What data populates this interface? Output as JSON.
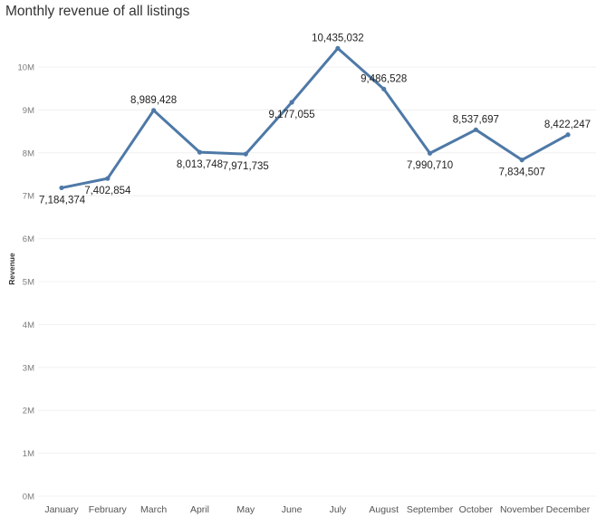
{
  "title": "Monthly revenue of all listings",
  "colors": {
    "line": "#4e79a7",
    "grid": "#f0f0f0",
    "background": "#ffffff"
  },
  "chart_data": {
    "type": "line",
    "title": "Monthly revenue of all listings",
    "xlabel": "",
    "ylabel": "Revenue",
    "categories": [
      "January",
      "February",
      "March",
      "April",
      "May",
      "June",
      "July",
      "August",
      "September",
      "October",
      "November",
      "December"
    ],
    "values": [
      7184374,
      7402854,
      8989428,
      8013748,
      7971735,
      9177055,
      10435032,
      9486528,
      7990710,
      8537697,
      7834507,
      8422247
    ],
    "data_labels": [
      "7,184,374",
      "7,402,854",
      "8,989,428",
      "8,013,748",
      "7,971,735",
      "9,177,055",
      "10,435,032",
      "9,486,528",
      "7,990,710",
      "8,537,697",
      "7,834,507",
      "8,422,247"
    ],
    "label_positions": [
      "below",
      "below",
      "above",
      "below",
      "below",
      "below",
      "above",
      "above",
      "below",
      "above",
      "below",
      "above"
    ],
    "ylim": [
      0,
      11000000
    ],
    "yticks": [
      0,
      1000000,
      2000000,
      3000000,
      4000000,
      5000000,
      6000000,
      7000000,
      8000000,
      9000000,
      10000000
    ],
    "ytick_labels": [
      "0M",
      "1M",
      "2M",
      "3M",
      "4M",
      "5M",
      "6M",
      "7M",
      "8M",
      "9M",
      "10M"
    ],
    "grid": true,
    "legend": "none"
  }
}
